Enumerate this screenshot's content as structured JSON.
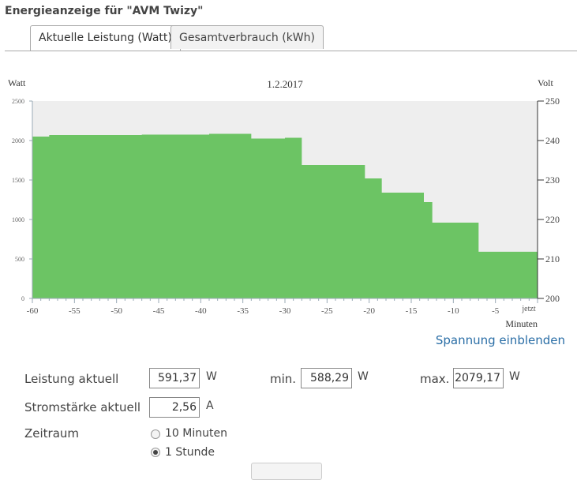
{
  "title": "Energieanzeige für \"AVM Twizy\"",
  "tabs": [
    {
      "label": "Aktuelle Leistung (Watt)",
      "active": true
    },
    {
      "label": "Gesamtverbrauch (kWh)",
      "active": false
    }
  ],
  "chart_data": {
    "type": "area",
    "title": "1.2.2017",
    "ylabel": "Watt",
    "y2label": "Volt",
    "xlabel": "Minuten",
    "xlim": [
      -60,
      0
    ],
    "ylim": [
      0,
      2500
    ],
    "y2lim": [
      200,
      250
    ],
    "x_ticks": [
      "-60",
      "-55",
      "-50",
      "-45",
      "-40",
      "-35",
      "-30",
      "-25",
      "-20",
      "-15",
      "-10",
      "-5",
      "jetzt"
    ],
    "y_ticks": [
      "0",
      "500",
      "1000",
      "1500",
      "2000",
      "2500"
    ],
    "y2_ticks": [
      "200",
      "210",
      "220",
      "230",
      "240",
      "250"
    ],
    "fill_color": "#6cc464",
    "background_color": "#eeeeee",
    "series": [
      {
        "x": [
          -60,
          -58,
          -50,
          -47,
          -45,
          -39,
          -34,
          -31,
          -30,
          -28,
          -21,
          -20.5,
          -18.5,
          -13.5,
          -12.5,
          -7,
          0
        ],
        "values": [
          2050,
          2070,
          2070,
          2075,
          2075,
          2085,
          2025,
          2025,
          2035,
          1690,
          1690,
          1520,
          1340,
          1220,
          960,
          591,
          591
        ]
      }
    ]
  },
  "spannung_link": "Spannung einblenden",
  "stats": {
    "leistung_label": "Leistung aktuell",
    "leistung_value": "591,37",
    "leistung_unit": "W",
    "min_label": "min.",
    "min_value": "588,29",
    "min_unit": "W",
    "max_label": "max.",
    "max_value": "2079,17",
    "max_unit": "W",
    "strom_label": "Stromstärke aktuell",
    "strom_value": "2,56",
    "strom_unit": "A"
  },
  "zeitraum": {
    "label": "Zeitraum",
    "options": [
      {
        "label": "10 Minuten",
        "checked": false
      },
      {
        "label": "1 Stunde",
        "checked": true
      }
    ]
  }
}
